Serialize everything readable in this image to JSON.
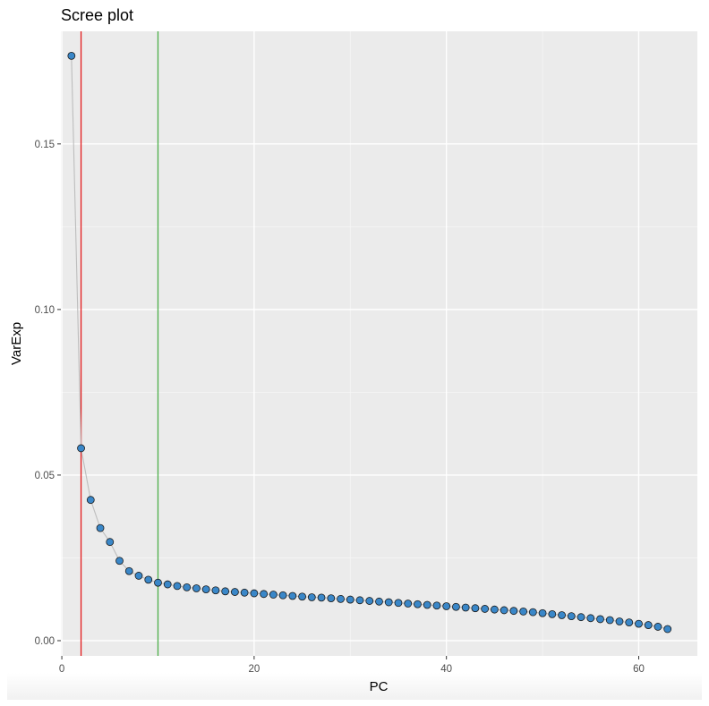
{
  "chart_data": {
    "type": "scatter",
    "title": "Scree plot",
    "xlabel": "PC",
    "ylabel": "VarExp",
    "xlim": [
      -0.1,
      66.1
    ],
    "ylim": [
      -0.0046,
      0.184
    ],
    "x_ticks": [
      0,
      20,
      40,
      60
    ],
    "x_tick_labels": [
      "0",
      "20",
      "40",
      "60"
    ],
    "y_ticks": [
      0.0,
      0.05,
      0.1,
      0.15
    ],
    "y_tick_labels": [
      "0.00",
      "0.05",
      "0.10",
      "0.15"
    ],
    "grid": true,
    "connect_points": true,
    "vlines": [
      {
        "x": 2,
        "color": "#e41a1c"
      },
      {
        "x": 10,
        "color": "#4daf4a"
      }
    ],
    "colors": {
      "point_fill": "#3a87c8",
      "point_stroke": "#1a1a1a",
      "line": "#bdbdbd",
      "panel_bg": "#ebebeb"
    },
    "series": [
      {
        "x": [
          1,
          2,
          3,
          4,
          5,
          6,
          7,
          8,
          9,
          10,
          11,
          12,
          13,
          14,
          15,
          16,
          17,
          18,
          19,
          20,
          21,
          22,
          23,
          24,
          25,
          26,
          27,
          28,
          29,
          30,
          31,
          32,
          33,
          34,
          35,
          36,
          37,
          38,
          39,
          40,
          41,
          42,
          43,
          44,
          45,
          46,
          47,
          48,
          49,
          50,
          51,
          52,
          53,
          54,
          55,
          56,
          57,
          58,
          59,
          60,
          61,
          62,
          63
        ],
        "values": [
          0.1766,
          0.0581,
          0.0425,
          0.034,
          0.0298,
          0.0241,
          0.021,
          0.0196,
          0.0184,
          0.0175,
          0.017,
          0.0165,
          0.0161,
          0.0158,
          0.0155,
          0.0152,
          0.0149,
          0.0147,
          0.0145,
          0.0143,
          0.0141,
          0.0139,
          0.0137,
          0.0135,
          0.0133,
          0.0131,
          0.013,
          0.0128,
          0.0126,
          0.0124,
          0.0122,
          0.012,
          0.0118,
          0.0116,
          0.0114,
          0.0112,
          0.011,
          0.0108,
          0.0106,
          0.0104,
          0.0102,
          0.01,
          0.0098,
          0.0096,
          0.0094,
          0.0092,
          0.009,
          0.0088,
          0.0086,
          0.0083,
          0.008,
          0.0077,
          0.0074,
          0.0071,
          0.0068,
          0.0065,
          0.0062,
          0.0058,
          0.0055,
          0.0051,
          0.0047,
          0.0042,
          0.0035
        ]
      }
    ]
  }
}
